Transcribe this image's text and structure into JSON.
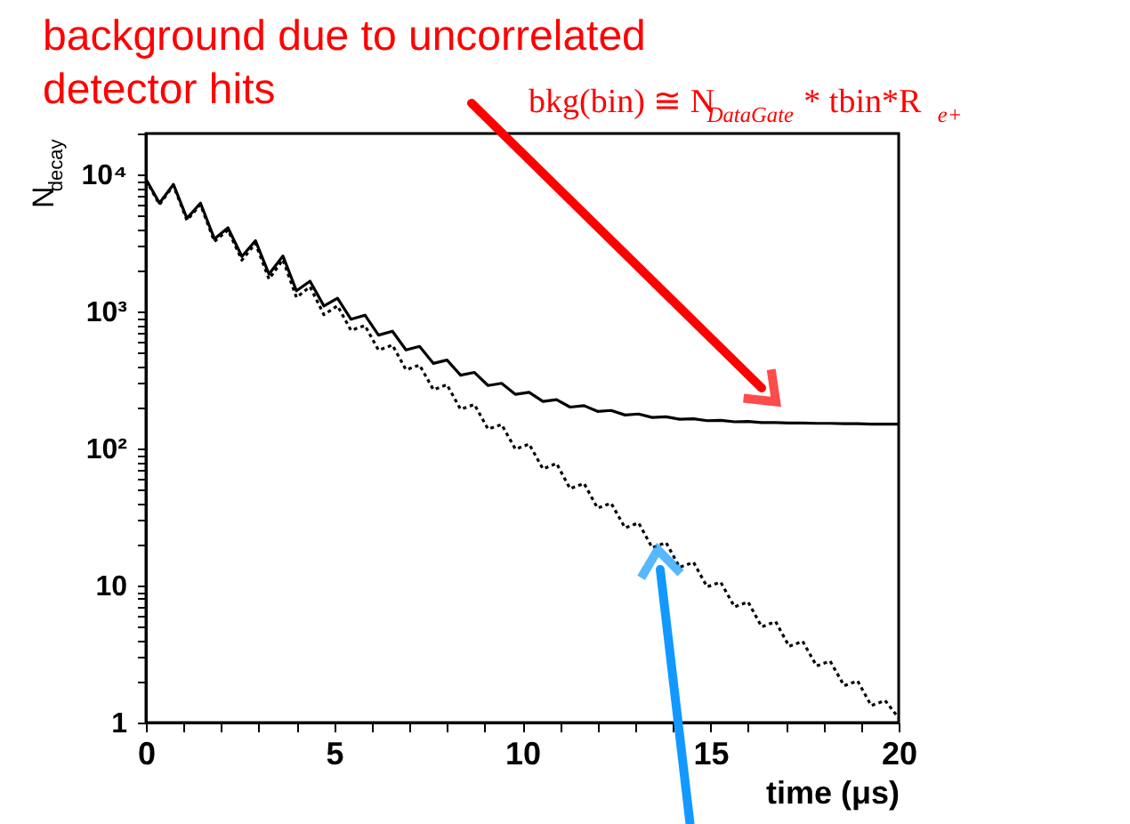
{
  "chart_data": {
    "type": "line",
    "xlabel": "time (μs)",
    "ylabel": "N$_{decay}$",
    "log": true,
    "grid": false,
    "x": [
      0,
      0.36,
      0.73,
      1.09,
      1.45,
      1.82,
      2.18,
      2.55,
      2.91,
      3.27,
      3.64,
      4,
      4.36,
      4.73,
      5.09,
      5.45,
      5.82,
      6.18,
      6.55,
      6.91,
      7.27,
      7.64,
      8,
      8.36,
      8.73,
      9.09,
      9.45,
      9.82,
      10.18,
      10.55,
      10.91,
      11.27,
      11.64,
      12,
      12.36,
      12.73,
      13.09,
      13.45,
      13.82,
      14.18,
      14.55,
      14.91,
      15.27,
      15.64,
      16,
      16.36,
      16.73,
      17.09,
      17.45,
      17.82,
      18.18,
      18.55,
      18.91,
      19.27,
      19.64,
      20
    ],
    "series": [
      {
        "color": "#000000",
        "line_style": "solid",
        "values": [
          9300,
          6200,
          8500,
          4800,
          6200,
          3400,
          4100,
          2530,
          3300,
          1880,
          2550,
          1420,
          1670,
          1100,
          1255,
          880,
          943,
          674,
          720,
          526,
          558,
          419,
          443,
          344,
          360,
          289,
          300,
          249,
          258,
          221,
          228,
          201,
          206,
          187,
          190,
          176,
          179,
          169,
          171,
          164,
          165,
          160,
          161,
          157,
          158,
          155,
          155,
          154,
          154,
          153,
          153,
          152,
          152,
          151,
          151,
          151
        ]
      },
      {
        "color": "#000000",
        "line_style": "dotted",
        "values": [
          9150,
          6050,
          8350,
          4650,
          6050,
          3250,
          3950,
          2380,
          3150,
          1730,
          2400,
          1270,
          1520,
          950,
          1105,
          730,
          793,
          524,
          570,
          376,
          408,
          269,
          293,
          194,
          210,
          139,
          150,
          99,
          108,
          71,
          78,
          51,
          55.8,
          36.8,
          40,
          26.4,
          28.7,
          18.9,
          20.6,
          13.6,
          14.8,
          9.8,
          10.6,
          7,
          7.6,
          5,
          5.46,
          3.6,
          3.92,
          2.59,
          2.81,
          1.86,
          2.01,
          1.33,
          1.45,
          1.08
        ]
      }
    ],
    "xlim": [
      0,
      20
    ],
    "xticks": [
      0,
      {
        "value": 1,
        "label": null
      },
      {
        "value": 2,
        "label": null
      },
      {
        "value": 3,
        "label": null
      },
      {
        "value": 4,
        "label": null
      },
      5,
      {
        "value": 6,
        "label": null
      },
      {
        "value": 7,
        "label": null
      },
      {
        "value": 8,
        "label": null
      },
      {
        "value": 9,
        "label": null
      },
      10,
      {
        "value": 11,
        "label": null
      },
      {
        "value": 12,
        "label": null
      },
      {
        "value": 13,
        "label": null
      },
      {
        "value": 14,
        "label": null
      },
      15,
      {
        "value": 16,
        "label": null
      },
      {
        "value": 17,
        "label": null
      },
      {
        "value": 18,
        "label": null
      },
      {
        "value": 19,
        "label": null
      },
      20
    ],
    "ylim": [
      1,
      20000
    ],
    "yticks": [
      1,
      {
        "value": 2,
        "label": null
      },
      {
        "value": 3,
        "label": null
      },
      {
        "value": 4,
        "label": null
      },
      {
        "value": 5,
        "label": null
      },
      {
        "value": 6,
        "label": null
      },
      {
        "value": 7,
        "label": null
      },
      {
        "value": 8,
        "label": null
      },
      {
        "value": 9,
        "label": null
      },
      10,
      {
        "value": 20,
        "label": null
      },
      {
        "value": 30,
        "label": null
      },
      {
        "value": 40,
        "label": null
      },
      {
        "value": 50,
        "label": null
      },
      {
        "value": 60,
        "label": null
      },
      {
        "value": 70,
        "label": null
      },
      {
        "value": 80,
        "label": null
      },
      {
        "value": 90,
        "label": null
      },
      {
        "value": 100,
        "label": "10²"
      },
      {
        "value": 200,
        "label": null
      },
      {
        "value": 300,
        "label": null
      },
      {
        "value": 400,
        "label": null
      },
      {
        "value": 500,
        "label": null
      },
      {
        "value": 600,
        "label": null
      },
      {
        "value": 700,
        "label": null
      },
      {
        "value": 800,
        "label": null
      },
      {
        "value": 900,
        "label": null
      },
      {
        "value": 1000,
        "label": "10³"
      },
      {
        "value": 2000,
        "label": null
      },
      {
        "value": 3000,
        "label": null
      },
      {
        "value": 4000,
        "label": null
      },
      {
        "value": 5000,
        "label": null
      },
      {
        "value": 6000,
        "label": null
      },
      {
        "value": 7000,
        "label": null
      },
      {
        "value": 8000,
        "label": null
      },
      {
        "value": 9000,
        "label": null
      },
      {
        "value": 10000,
        "label": "10⁴"
      },
      {
        "value": 20000,
        "label": null
      }
    ],
    "annotations": [
      "background due to uncorrelated detector hits",
      "bkg(bin) ≅ N$_{DataGate}$ * tbin*R$_{e+}$"
    ]
  }
}
